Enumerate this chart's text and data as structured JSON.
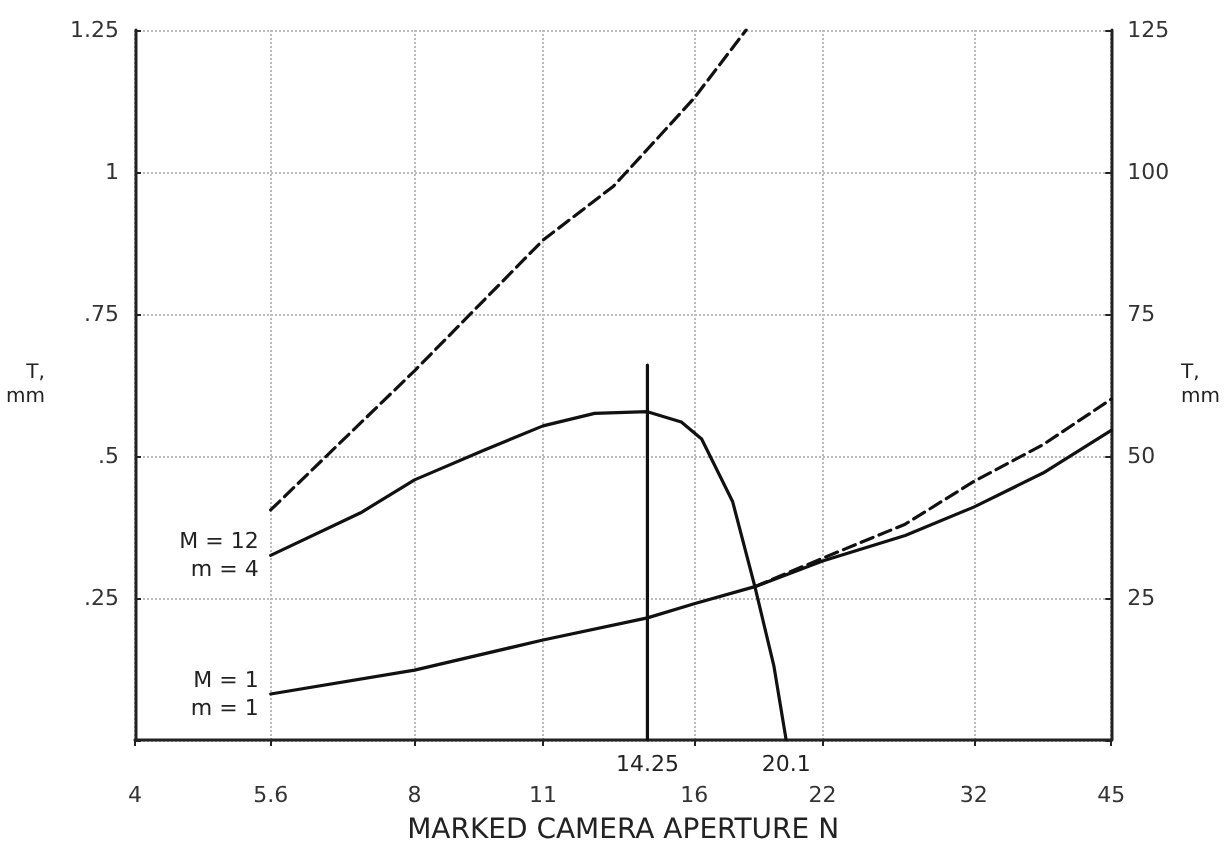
{
  "chart_data": {
    "type": "line",
    "xlabel": "MARKED CAMERA APERTURE N",
    "ylabel": "T,\nmm",
    "y2label": "T,\nmm",
    "log": "x",
    "grid": true,
    "marker": "none",
    "xlim": [
      4,
      45
    ],
    "xticks": [
      4,
      5.6,
      8,
      11,
      16,
      22,
      32,
      45
    ],
    "ylim": [
      0,
      1.25
    ],
    "yticks": [
      {
        "value": 0,
        "label": null
      },
      {
        "value": 0.25,
        "label": ".25"
      },
      {
        "value": 0.5,
        "label": ".5"
      },
      {
        "value": 0.75,
        "label": ".75"
      },
      1,
      1.25
    ],
    "y2lim": [
      0,
      125
    ],
    "y2ticks": [
      {
        "value": 0,
        "label": null
      },
      25,
      50,
      75,
      100,
      125
    ],
    "series": [
      {
        "color": "#111111",
        "line_style": "dashed",
        "x": [
          5.6,
          8,
          11,
          13.1,
          14.25,
          16,
          18.2
        ],
        "values": [
          0.405,
          0.65,
          0.88,
          0.975,
          1.04,
          1.13,
          1.25
        ]
      },
      {
        "color": "#111111",
        "line_style": "solid",
        "x": [
          5.6,
          7,
          8,
          9.5,
          11,
          12.5,
          14.25,
          15.5,
          16.3,
          17.6,
          18.6,
          19.5,
          20.1
        ],
        "values": [
          0.325,
          0.4,
          0.458,
          0.51,
          0.553,
          0.575,
          0.578,
          0.56,
          0.53,
          0.42,
          0.27,
          0.13,
          0
        ]
      },
      {
        "color": "#111111",
        "line_style": "solid",
        "x": [
          5.6,
          8,
          11,
          14.25,
          16,
          18.6,
          22,
          27,
          32,
          38,
          45
        ],
        "values": [
          0.081,
          0.123,
          0.176,
          0.215,
          0.24,
          0.27,
          0.315,
          0.36,
          0.41,
          0.47,
          0.545
        ]
      },
      {
        "color": "#111111",
        "line_style": "dashed",
        "x": [
          18.6,
          22,
          27,
          32,
          38,
          45
        ],
        "values": [
          0.27,
          0.32,
          0.38,
          0.455,
          0.52,
          0.6
        ]
      },
      {
        "color": "#111111",
        "line_style": "solid",
        "x": [
          14.25,
          14.25
        ],
        "values": [
          0,
          0.66
        ]
      }
    ],
    "annotations": [
      {
        "text": "M = 12\nm = 4",
        "x": 5.6,
        "y": 0.325
      },
      {
        "text": "M = 1\nm = 1",
        "x": 5.6,
        "y": 0.081
      },
      {
        "text": "14.25",
        "x": 14.25,
        "y": 0
      },
      {
        "text": "20.1",
        "x": 20.1,
        "y": 0
      }
    ]
  }
}
